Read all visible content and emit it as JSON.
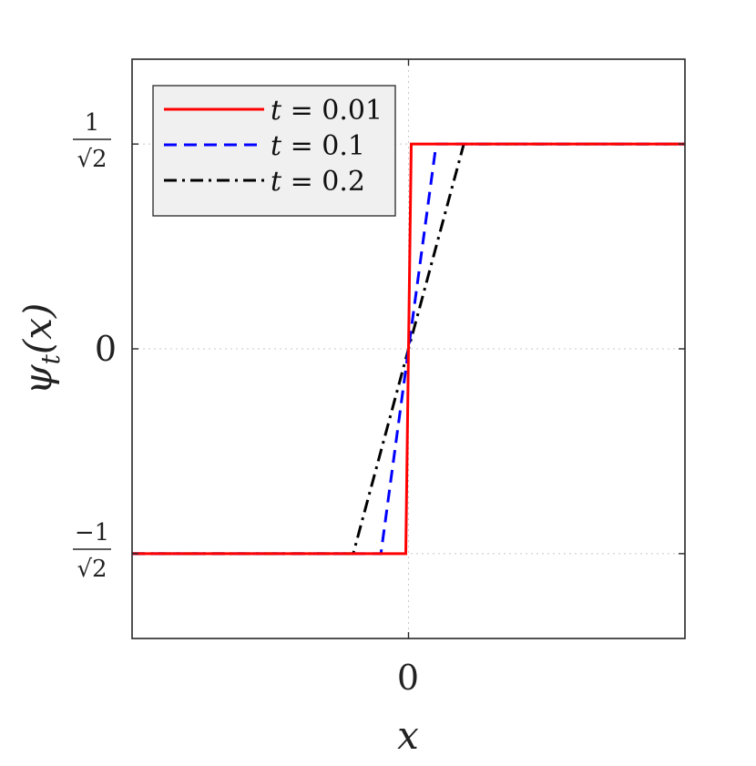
{
  "chart_data": {
    "type": "line",
    "xlabel": "x",
    "ylabel": "ψt(x)",
    "ylabel_parts": {
      "main": "ψ",
      "sub": "t",
      "arg": "(x)"
    },
    "x_ticks": [
      {
        "value": 0,
        "label": "0"
      }
    ],
    "y_ticks": [
      {
        "value": -0.7071,
        "num": "−1",
        "den": "√2"
      },
      {
        "value": 0,
        "label": "0"
      },
      {
        "value": 0.7071,
        "num": "1",
        "den": "√2"
      }
    ],
    "xlim": [
      -1,
      1
    ],
    "ylim": [
      -1.0,
      1.0
    ],
    "grid": true,
    "legend_position": "top-left",
    "series": [
      {
        "name": "t = 0.01",
        "name_var": "t",
        "name_val": " = 0.01",
        "color": "#ff0000",
        "dash": "solid",
        "x": [
          -1,
          -0.01,
          0.01,
          1
        ],
        "y": [
          -0.7071,
          -0.7071,
          0.7071,
          0.7071
        ]
      },
      {
        "name": "t = 0.1",
        "name_var": "t",
        "name_val": " = 0.1",
        "color": "#0000ff",
        "dash": "dashed",
        "x": [
          -1,
          -0.1,
          0.1,
          1
        ],
        "y": [
          -0.7071,
          -0.7071,
          0.7071,
          0.7071
        ]
      },
      {
        "name": "t = 0.2",
        "name_var": "t",
        "name_val": " = 0.2",
        "color": "#000000",
        "dash": "dashdot",
        "x": [
          -1,
          -0.2,
          0.2,
          1
        ],
        "y": [
          -0.7071,
          -0.7071,
          0.7071,
          0.7071
        ]
      }
    ]
  }
}
